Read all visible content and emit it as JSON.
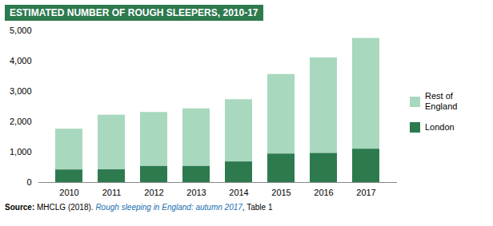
{
  "chart_data": {
    "type": "bar",
    "stacked": true,
    "title": "ESTIMATED NUMBER OF ROUGH SLEEPERS, 2010-17",
    "categories": [
      "2010",
      "2011",
      "2012",
      "2013",
      "2014",
      "2015",
      "2016",
      "2017"
    ],
    "series": [
      {
        "name": "Rest of\nEngland",
        "color": "#a8d8be",
        "values": [
          1345,
          1800,
          1780,
          1900,
          2050,
          2620,
          3150,
          3650
        ]
      },
      {
        "name": "London",
        "color": "#2d7a4f",
        "values": [
          415,
          420,
          530,
          530,
          680,
          940,
          960,
          1100
        ]
      }
    ],
    "ylim": [
      0,
      5000
    ],
    "yticks": [
      0,
      {
        "value": 1000,
        "label": "1,000"
      },
      {
        "value": 2000,
        "label": "2,000"
      },
      {
        "value": 3000,
        "label": "3,000"
      },
      {
        "value": 4000,
        "label": "4,000"
      },
      {
        "value": 5000,
        "label": "5,000"
      }
    ],
    "grid": false,
    "legend": "right",
    "source": [
      "Source:",
      " MHCLG (2018). ",
      "Rough sleeping in England: autumn 2017",
      ", Table 1"
    ]
  }
}
